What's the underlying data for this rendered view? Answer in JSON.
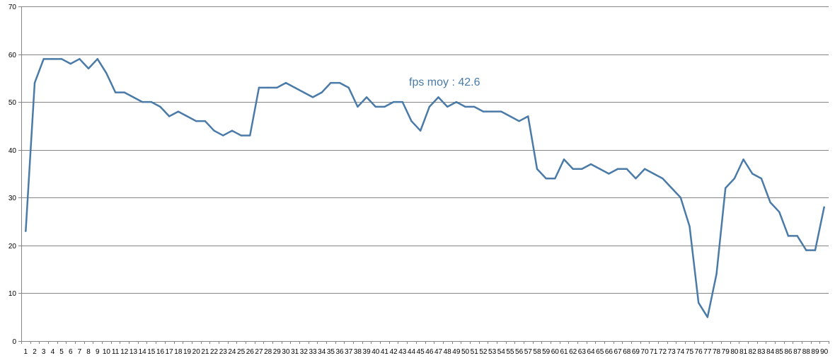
{
  "chart_data": {
    "type": "line",
    "title": "",
    "xlabel": "",
    "ylabel": "",
    "annotation": "fps moy : 42.6",
    "ylim": [
      0,
      70
    ],
    "yticks": [
      0,
      10,
      20,
      30,
      40,
      50,
      60,
      70
    ],
    "grid": true,
    "legend": "none",
    "colors": {
      "line": "#4a7aa7",
      "grid": "#868686",
      "axis": "#868686",
      "annotation": "#4a7aa7"
    },
    "x": [
      1,
      2,
      3,
      4,
      5,
      6,
      7,
      8,
      9,
      10,
      11,
      12,
      13,
      14,
      15,
      16,
      17,
      18,
      19,
      20,
      21,
      22,
      23,
      24,
      25,
      26,
      27,
      28,
      29,
      30,
      31,
      32,
      33,
      34,
      35,
      36,
      37,
      38,
      39,
      40,
      41,
      42,
      43,
      44,
      45,
      46,
      47,
      48,
      49,
      50,
      51,
      52,
      53,
      54,
      55,
      56,
      57,
      58,
      59,
      60,
      61,
      62,
      63,
      64,
      65,
      66,
      67,
      68,
      69,
      70,
      71,
      72,
      73,
      74,
      75,
      76,
      77,
      78,
      79,
      80,
      81,
      82,
      83,
      84,
      85,
      86,
      87,
      88,
      89,
      90
    ],
    "values": [
      23,
      54,
      59,
      59,
      59,
      58,
      59,
      57,
      59,
      56,
      52,
      52,
      51,
      50,
      50,
      49,
      47,
      48,
      47,
      46,
      46,
      44,
      43,
      44,
      43,
      43,
      53,
      53,
      53,
      54,
      53,
      52,
      51,
      52,
      54,
      54,
      53,
      49,
      51,
      49,
      49,
      50,
      50,
      46,
      44,
      49,
      51,
      49,
      50,
      49,
      49,
      48,
      48,
      48,
      47,
      46,
      47,
      36,
      34,
      34,
      38,
      36,
      36,
      37,
      36,
      35,
      36,
      36,
      34,
      36,
      35,
      34,
      32,
      30,
      24,
      8,
      5,
      14,
      32,
      34,
      38,
      35,
      34,
      29,
      27,
      22,
      22,
      19,
      19,
      28
    ]
  }
}
